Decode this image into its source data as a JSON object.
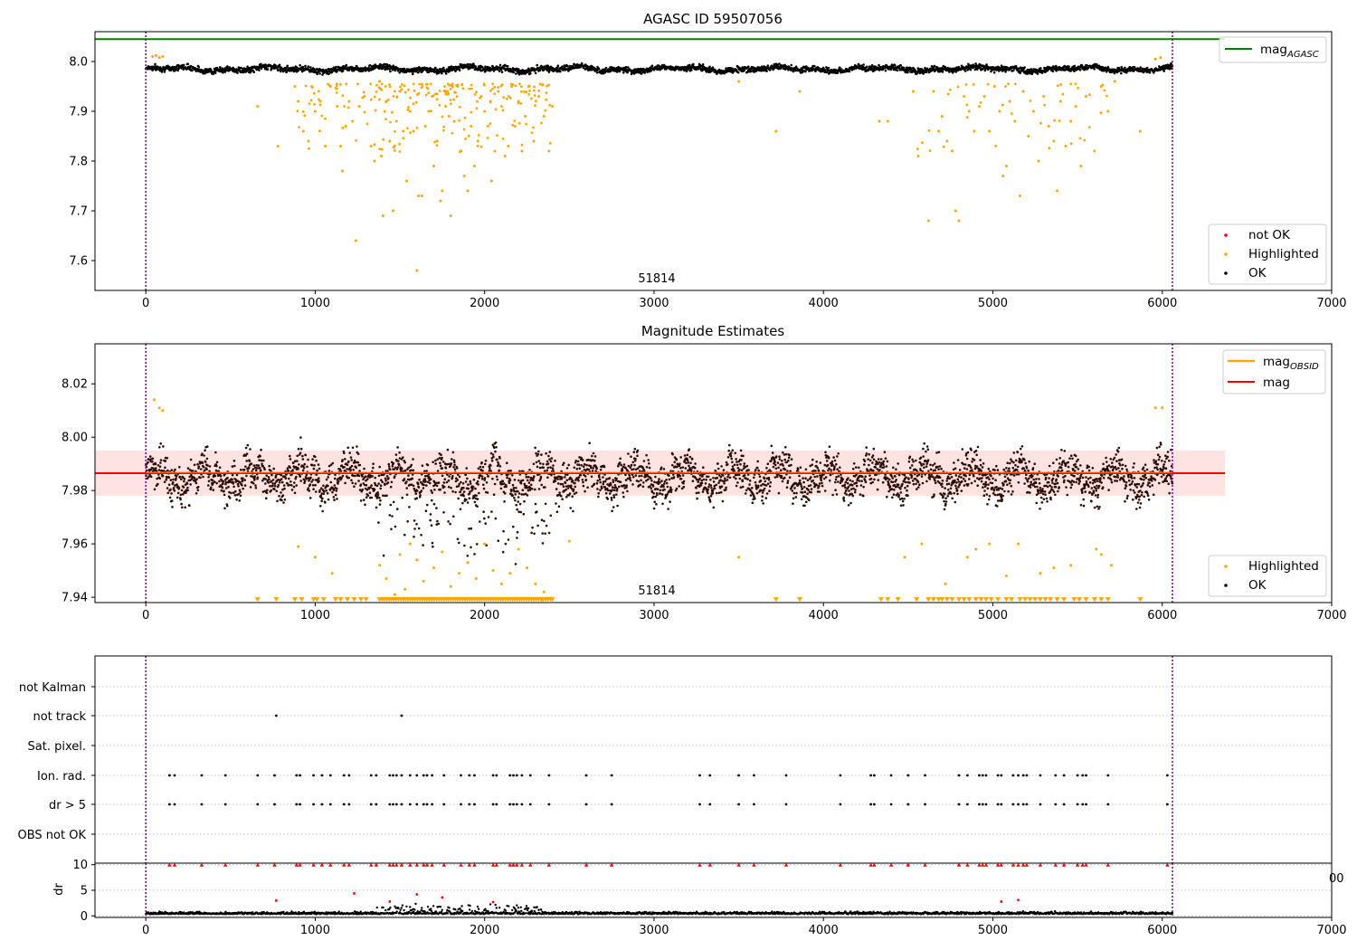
{
  "chart_data": [
    {
      "type": "scatter",
      "title": "AGASC ID 59507056",
      "xlabel": "",
      "ylabel": "",
      "xlim": [
        -300,
        7000
      ],
      "ylim": [
        7.54,
        8.06
      ],
      "xticks": [
        "0",
        "1000",
        "2000",
        "3000",
        "4000",
        "5000",
        "6000",
        "7000"
      ],
      "yticks": [
        "7.6",
        "7.7",
        "7.8",
        "7.9",
        "8.0"
      ],
      "annotation": "51814",
      "vlines": [
        0,
        6060
      ],
      "hline": {
        "name": "mag_AGASC",
        "label_main": "mag",
        "label_sub": "AGASC",
        "y": 8.045,
        "x0": -300,
        "x1": 6370,
        "color": "#008000"
      },
      "series": [
        {
          "name": "not OK",
          "color": "#ff0000"
        },
        {
          "name": "Highlighted",
          "color": "#ffa500"
        },
        {
          "name": "OK",
          "color": "#000000",
          "baseline": 7.985,
          "spread": 0.009
        }
      ],
      "highlighted_points": [
        [
          660,
          7.91
        ],
        [
          780,
          7.83
        ],
        [
          880,
          7.95
        ],
        [
          900,
          7.92
        ],
        [
          930,
          7.86
        ],
        [
          960,
          7.84
        ],
        [
          980,
          7.95
        ],
        [
          1000,
          7.9
        ],
        [
          1030,
          7.92
        ],
        [
          1060,
          7.83
        ],
        [
          1090,
          7.95
        ],
        [
          1130,
          7.91
        ],
        [
          1150,
          7.83
        ],
        [
          1160,
          7.78
        ],
        [
          1180,
          7.87
        ],
        [
          1200,
          7.92
        ],
        [
          1220,
          7.88
        ],
        [
          1240,
          7.64
        ],
        [
          1260,
          7.91
        ],
        [
          1290,
          7.93
        ],
        [
          1330,
          7.83
        ],
        [
          1350,
          7.8
        ],
        [
          1380,
          7.96
        ],
        [
          1390,
          7.81
        ],
        [
          1400,
          7.69
        ],
        [
          1420,
          7.92
        ],
        [
          1440,
          7.84
        ],
        [
          1460,
          7.7
        ],
        [
          1480,
          7.88
        ],
        [
          1500,
          7.94
        ],
        [
          1520,
          7.86
        ],
        [
          1540,
          7.76
        ],
        [
          1560,
          7.9
        ],
        [
          1580,
          7.86
        ],
        [
          1600,
          7.58
        ],
        [
          1610,
          7.73
        ],
        [
          1630,
          7.73
        ],
        [
          1650,
          7.87
        ],
        [
          1670,
          7.9
        ],
        [
          1690,
          7.93
        ],
        [
          1700,
          7.79
        ],
        [
          1720,
          7.84
        ],
        [
          1740,
          7.72
        ],
        [
          1750,
          7.74
        ],
        [
          1770,
          7.91
        ],
        [
          1790,
          7.89
        ],
        [
          1800,
          7.69
        ],
        [
          1820,
          7.88
        ],
        [
          1840,
          7.95
        ],
        [
          1860,
          7.82
        ],
        [
          1880,
          7.77
        ],
        [
          1900,
          7.74
        ],
        [
          1920,
          7.87
        ],
        [
          1940,
          7.79
        ],
        [
          1960,
          7.84
        ],
        [
          1980,
          7.93
        ],
        [
          2000,
          7.9
        ],
        [
          2020,
          7.87
        ],
        [
          2040,
          7.76
        ],
        [
          2060,
          7.82
        ],
        [
          2080,
          7.94
        ],
        [
          2100,
          7.91
        ],
        [
          2120,
          7.81
        ],
        [
          2140,
          7.83
        ],
        [
          2160,
          7.95
        ],
        [
          2180,
          7.87
        ],
        [
          2200,
          7.92
        ],
        [
          2220,
          7.82
        ],
        [
          2240,
          7.89
        ],
        [
          2260,
          7.95
        ],
        [
          2290,
          7.84
        ],
        [
          2320,
          7.93
        ],
        [
          2350,
          7.89
        ],
        [
          2380,
          7.82
        ],
        [
          2400,
          7.91
        ],
        [
          3500,
          7.96
        ],
        [
          3720,
          7.86
        ],
        [
          3860,
          7.94
        ],
        [
          4330,
          7.88
        ],
        [
          4380,
          7.88
        ],
        [
          4530,
          7.94
        ],
        [
          4560,
          7.81
        ],
        [
          4620,
          7.68
        ],
        [
          4650,
          7.94
        ],
        [
          4680,
          7.86
        ],
        [
          4700,
          7.89
        ],
        [
          4730,
          7.84
        ],
        [
          4760,
          7.82
        ],
        [
          4780,
          7.7
        ],
        [
          4800,
          7.68
        ],
        [
          4830,
          7.93
        ],
        [
          4860,
          7.9
        ],
        [
          4890,
          7.86
        ],
        [
          4920,
          7.91
        ],
        [
          4950,
          7.93
        ],
        [
          4980,
          7.86
        ],
        [
          5010,
          7.95
        ],
        [
          5040,
          7.9
        ],
        [
          5060,
          7.77
        ],
        [
          5080,
          7.79
        ],
        [
          5100,
          7.92
        ],
        [
          5130,
          7.88
        ],
        [
          5160,
          7.73
        ],
        [
          5180,
          7.94
        ],
        [
          5210,
          7.85
        ],
        [
          5240,
          7.9
        ],
        [
          5270,
          7.8
        ],
        [
          5300,
          7.93
        ],
        [
          5330,
          7.87
        ],
        [
          5360,
          7.84
        ],
        [
          5380,
          7.74
        ],
        [
          5400,
          7.92
        ],
        [
          5430,
          7.83
        ],
        [
          5460,
          7.88
        ],
        [
          5490,
          7.91
        ],
        [
          5520,
          7.79
        ],
        [
          5550,
          7.93
        ],
        [
          5600,
          7.82
        ],
        [
          5640,
          7.95
        ],
        [
          5680,
          7.9
        ],
        [
          5720,
          7.96
        ],
        [
          5870,
          7.86
        ]
      ]
    },
    {
      "type": "scatter",
      "title": "Magnitude Estimates",
      "xlabel": "",
      "ylabel": "",
      "xlim": [
        -300,
        7000
      ],
      "ylim": [
        7.938,
        8.035
      ],
      "xticks": [
        "0",
        "1000",
        "2000",
        "3000",
        "4000",
        "5000",
        "6000",
        "7000"
      ],
      "yticks": [
        "7.94",
        "7.96",
        "7.98",
        "8.00",
        "8.02"
      ],
      "annotation": "51814",
      "vlines": [
        0,
        6060
      ],
      "mean_line": {
        "name": "mag",
        "y": 7.9865,
        "color": "#ff0000"
      },
      "band": {
        "y0": 7.978,
        "y1": 7.995,
        "x0": -300,
        "x1": 6370,
        "color": "#ffa0a0"
      },
      "obsid_line": {
        "name": "mag_OBSID",
        "label_main": "mag",
        "label_sub": "OBSID",
        "color": "#ffa500"
      },
      "lower_limit_markers_at": 7.939,
      "series": [
        {
          "name": "Highlighted",
          "color": "#ffa500"
        },
        {
          "name": "OK",
          "color": "#000000",
          "baseline": 7.985,
          "spread": 0.006
        }
      ],
      "highlighted_points": [
        [
          50,
          8.014
        ],
        [
          80,
          8.011
        ],
        [
          100,
          8.01
        ],
        [
          900,
          7.959
        ],
        [
          1000,
          7.955
        ],
        [
          1100,
          7.949
        ],
        [
          1380,
          7.952
        ],
        [
          1420,
          7.947
        ],
        [
          1470,
          7.941
        ],
        [
          1500,
          7.956
        ],
        [
          1530,
          7.943
        ],
        [
          1560,
          7.96
        ],
        [
          1600,
          7.954
        ],
        [
          1640,
          7.946
        ],
        [
          1700,
          7.951
        ],
        [
          1750,
          7.957
        ],
        [
          1800,
          7.944
        ],
        [
          1850,
          7.949
        ],
        [
          1900,
          7.953
        ],
        [
          1950,
          7.947
        ],
        [
          2000,
          7.96
        ],
        [
          2050,
          7.95
        ],
        [
          2100,
          7.945
        ],
        [
          2150,
          7.949
        ],
        [
          2200,
          7.958
        ],
        [
          2250,
          7.951
        ],
        [
          2300,
          7.945
        ],
        [
          2350,
          7.942
        ],
        [
          2500,
          7.961
        ],
        [
          3500,
          7.955
        ],
        [
          4480,
          7.955
        ],
        [
          4580,
          7.96
        ],
        [
          4720,
          7.945
        ],
        [
          4850,
          7.955
        ],
        [
          4900,
          7.958
        ],
        [
          4980,
          7.96
        ],
        [
          5080,
          7.948
        ],
        [
          5150,
          7.96
        ],
        [
          5280,
          7.949
        ],
        [
          5360,
          7.951
        ],
        [
          5460,
          7.952
        ],
        [
          5610,
          7.958
        ],
        [
          5640,
          7.956
        ],
        [
          5700,
          7.952
        ],
        [
          5960,
          8.011
        ],
        [
          6000,
          8.011
        ]
      ]
    },
    {
      "type": "scatter",
      "title": "",
      "xlabel": "",
      "ylabel": "",
      "xlim": [
        -300,
        7000
      ],
      "categories": [
        "not Kalman",
        "not track",
        "Sat. pixel.",
        "Ion. rad.",
        "dr > 5",
        "OBS not OK"
      ],
      "vlines": [
        0,
        6060
      ],
      "flag_x": {
        "not track": [
          770,
          1510
        ],
        "Ion. rad.": [
          140,
          170,
          330,
          470,
          660,
          760,
          890,
          910,
          990,
          1040,
          1090,
          1170,
          1200,
          1330,
          1360,
          1440,
          1460,
          1480,
          1510,
          1560,
          1600,
          1640,
          1660,
          1690,
          1760,
          1860,
          1910,
          1940,
          2050,
          2070,
          2150,
          2170,
          2190,
          2220,
          2270,
          2380,
          2600,
          2750,
          3270,
          3330,
          3500,
          3590,
          3780,
          4100,
          4280,
          4300,
          4400,
          4500,
          4600,
          4800,
          4850,
          4920,
          4940,
          4960,
          5030,
          5050,
          5120,
          5150,
          5180,
          5200,
          5280,
          5370,
          5420,
          5500,
          5530,
          5550,
          5680,
          6030
        ],
        "dr > 5": [
          140,
          170,
          330,
          470,
          660,
          760,
          890,
          910,
          990,
          1040,
          1090,
          1170,
          1200,
          1330,
          1360,
          1440,
          1460,
          1480,
          1510,
          1560,
          1600,
          1640,
          1660,
          1690,
          1760,
          1860,
          1910,
          1940,
          2050,
          2070,
          2150,
          2170,
          2190,
          2220,
          2270,
          2380,
          2600,
          2750,
          3270,
          3330,
          3500,
          3590,
          3780,
          4100,
          4280,
          4300,
          4400,
          4500,
          4600,
          4800,
          4850,
          4920,
          4940,
          4960,
          5030,
          5050,
          5120,
          5150,
          5180,
          5200,
          5280,
          5370,
          5420,
          5500,
          5530,
          5550,
          5680,
          6030
        ]
      }
    },
    {
      "type": "scatter",
      "title": "",
      "xlabel": "",
      "ylabel": "dr",
      "xlim": [
        -300,
        7000
      ],
      "ylim": [
        -0.3,
        10.3
      ],
      "xticks": [
        "0",
        "1000",
        "2000",
        "3000",
        "4000",
        "5000",
        "6000",
        "7000"
      ],
      "yticks": [
        "0",
        "5",
        "10"
      ],
      "clipped_label": "00",
      "vlines": [
        0,
        6060
      ],
      "capped_at": 10,
      "moderate_points": [
        [
          770,
          3.0
        ],
        [
          1230,
          4.4
        ],
        [
          1440,
          2.8
        ],
        [
          1600,
          4.2
        ],
        [
          1750,
          3.6
        ],
        [
          2050,
          2.7
        ],
        [
          5050,
          2.8
        ],
        [
          5150,
          3.1
        ]
      ]
    }
  ]
}
